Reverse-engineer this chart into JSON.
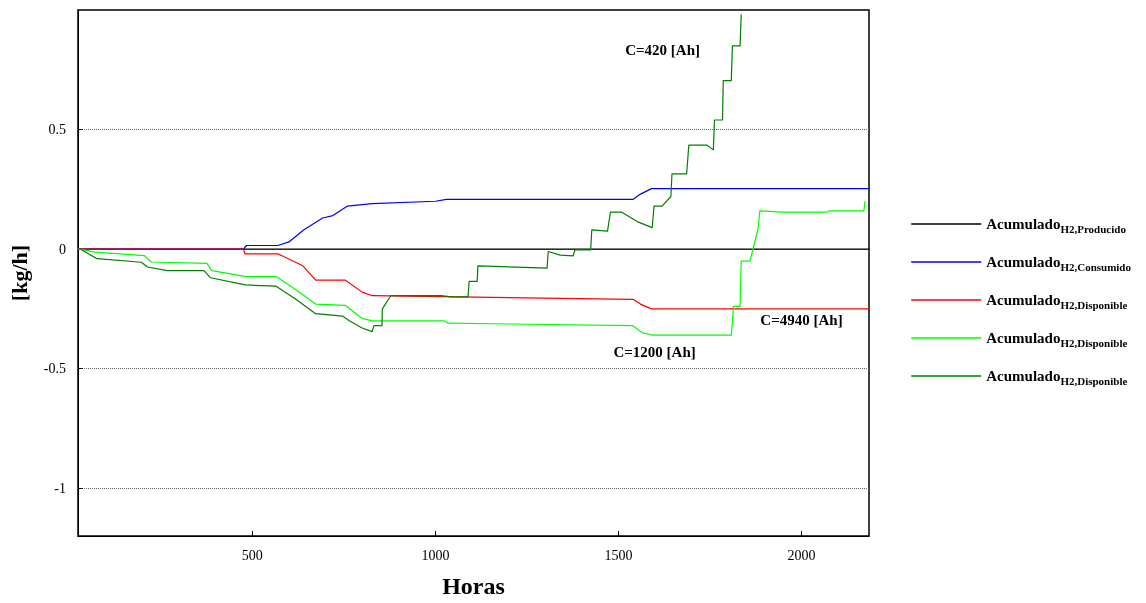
{
  "chart_data": {
    "type": "line",
    "xlabel": "Horas",
    "ylabel": "[kg/h]",
    "xlim": [
      24,
      2184
    ],
    "ylim": [
      -1.2,
      1
    ],
    "xticks": [
      500,
      1000,
      1500,
      2000
    ],
    "yticks": [
      -1,
      -0.5,
      0,
      0.5
    ],
    "grid": "y",
    "legend": "right",
    "marker": "none",
    "line_style": "solid",
    "series": [
      {
        "name": "Acumulado$_{H2,Producido}$",
        "color": "#000000",
        "x": [
          24,
          2184
        ],
        "values": [
          0,
          0
        ]
      },
      {
        "name": "Acumulado$_{H2,Consumido}$",
        "color": "#0000ff",
        "x": [
          24,
          476,
          484,
          570,
          600,
          640,
          692,
          720,
          760,
          827,
          1000,
          1030,
          1540,
          1560,
          1590,
          2184
        ],
        "values": [
          0,
          0,
          0.015,
          0.015,
          0.03,
          0.08,
          0.13,
          0.14,
          0.18,
          0.19,
          0.2,
          0.208,
          0.208,
          0.23,
          0.253,
          0.253
        ]
      },
      {
        "name": "Acumulado$_{H2,Disponible}$",
        "color": "#ff0000",
        "x": [
          24,
          476,
          480,
          570,
          584,
          638,
          673,
          754,
          800,
          827,
          1540,
          1560,
          1590,
          2184
        ],
        "values": [
          0,
          0,
          -0.02,
          -0.02,
          -0.03,
          -0.07,
          -0.13,
          -0.13,
          -0.18,
          -0.195,
          -0.21,
          -0.23,
          -0.25,
          -0.25
        ]
      },
      {
        "name": "Acumulado$_{H2,Disponible}$",
        "color": "#00ff00",
        "x": [
          24,
          30,
          70,
          205,
          224,
          376,
          389,
          484,
          565,
          619,
          673,
          754,
          800,
          827,
          1024,
          1035,
          1538,
          1565,
          1592,
          1808,
          1814,
          1832,
          1835,
          1859,
          1881,
          1886,
          1943,
          2070,
          2076,
          2170,
          2173
        ],
        "values": [
          0,
          0,
          -0.013,
          -0.027,
          -0.054,
          -0.06,
          -0.09,
          -0.115,
          -0.115,
          -0.17,
          -0.23,
          -0.235,
          -0.29,
          -0.3,
          -0.3,
          -0.31,
          -0.32,
          -0.35,
          -0.36,
          -0.36,
          -0.24,
          -0.24,
          -0.05,
          -0.05,
          0.085,
          0.16,
          0.155,
          0.155,
          0.16,
          0.16,
          0.2
        ]
      },
      {
        "name": "Acumulado$_{H2,Disponible}$",
        "color": "#007f00",
        "x": [
          24,
          30,
          76,
          197,
          214,
          268,
          368,
          386,
          481,
          565,
          619,
          673,
          746,
          765,
          800,
          827,
          832,
          854,
          855,
          878,
          1016,
          1043,
          1089,
          1092,
          1114,
          1116,
          1305,
          1308,
          1341,
          1376,
          1381,
          1424,
          1427,
          1470,
          1478,
          1508,
          1551,
          1592,
          1597,
          1619,
          1643,
          1646,
          1686,
          1692,
          1741,
          1759,
          1762,
          1784,
          1786,
          1808,
          1811,
          1832,
          1835
        ],
        "values": [
          0,
          0,
          -0.04,
          -0.055,
          -0.075,
          -0.09,
          -0.09,
          -0.12,
          -0.15,
          -0.155,
          -0.21,
          -0.27,
          -0.28,
          -0.3,
          -0.33,
          -0.345,
          -0.32,
          -0.32,
          -0.25,
          -0.195,
          -0.195,
          -0.2,
          -0.2,
          -0.135,
          -0.135,
          -0.07,
          -0.08,
          -0.01,
          -0.025,
          -0.028,
          -0.003,
          -0.003,
          0.08,
          0.075,
          0.155,
          0.155,
          0.115,
          0.09,
          0.18,
          0.18,
          0.22,
          0.315,
          0.315,
          0.435,
          0.435,
          0.415,
          0.54,
          0.54,
          0.705,
          0.705,
          0.85,
          0.85,
          0.98
        ]
      }
    ],
    "annotations": [
      "C=420 [Ah]",
      "C=4940 [Ah]",
      "C=1200 [Ah]"
    ]
  }
}
